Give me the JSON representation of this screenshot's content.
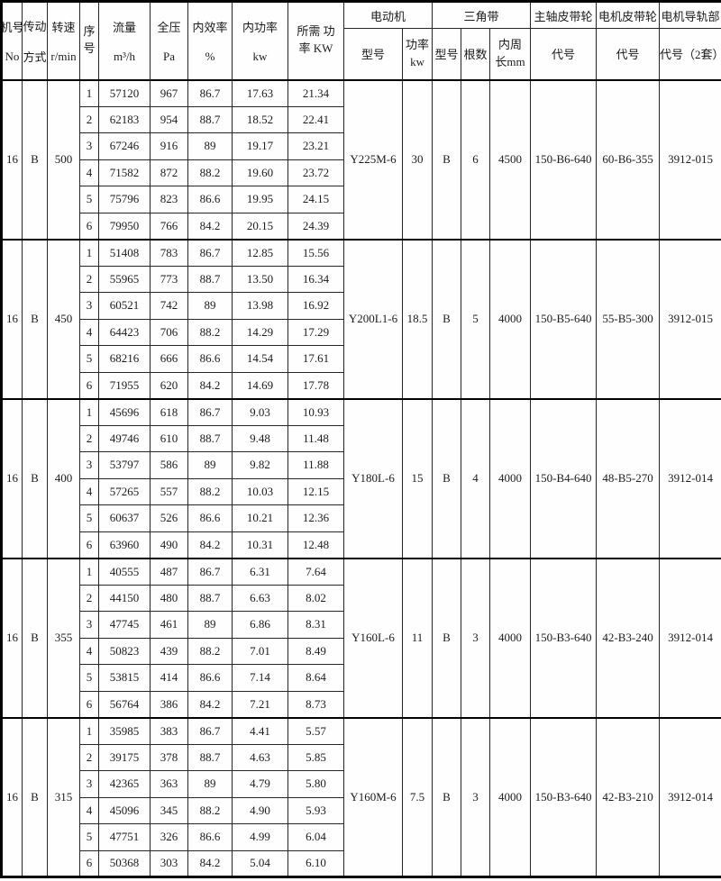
{
  "header": {
    "col_machine": {
      "top": "机号",
      "bottom": "No"
    },
    "col_drive": {
      "top": "传动",
      "bottom": "方式"
    },
    "col_speed": {
      "top": "转速",
      "bottom": "r/min"
    },
    "col_serial": {
      "top": "序",
      "bottom": "号"
    },
    "col_flow": {
      "top": "流量",
      "bottom": "m³/h"
    },
    "col_pressure": {
      "top": "全压",
      "bottom": "Pa"
    },
    "col_efficiency": {
      "top": "内效率",
      "bottom": "%"
    },
    "col_power": {
      "top": "内功率",
      "bottom": "kw"
    },
    "col_required": {
      "line1": "所需 功",
      "line2": "率 KW"
    },
    "motor_group": "电动机",
    "motor_model_label": "型号",
    "motor_power_label": {
      "line1": "功率",
      "line2": "kw"
    },
    "belt_group": "三角带",
    "belt_model_label": "型号",
    "belt_count_label": "根数",
    "belt_length_label": {
      "line1": "内周",
      "line2": "长mm"
    },
    "main_pulley_group": "主轴皮带轮",
    "main_pulley_code_label": "代号",
    "motor_pulley_group": "电机皮带轮",
    "motor_pulley_code_label": "代号",
    "rail_group": "电机导轨部",
    "rail_code_label": "代号（2套）"
  },
  "groups": [
    {
      "machine_no": "16",
      "drive": "B",
      "speed": "500",
      "bold_row": -1,
      "rows": [
        [
          "1",
          "57120",
          "967",
          "86.7",
          "17.63",
          "21.34"
        ],
        [
          "2",
          "62183",
          "954",
          "88.7",
          "18.52",
          "22.41"
        ],
        [
          "3",
          "67246",
          "916",
          "89",
          "19.17",
          "23.21"
        ],
        [
          "4",
          "71582",
          "872",
          "88.2",
          "19.60",
          "23.72"
        ],
        [
          "5",
          "75796",
          "823",
          "86.6",
          "19.95",
          "24.15"
        ],
        [
          "6",
          "79950",
          "766",
          "84.2",
          "20.15",
          "24.39"
        ]
      ],
      "motor_model": "Y225M-6",
      "motor_power": "30",
      "belt_model": "B",
      "belt_count": "6",
      "belt_length": "4500",
      "main_pulley": "150-B6-640",
      "motor_pulley": "60-B6-355",
      "rail": "3912-015"
    },
    {
      "machine_no": "16",
      "drive": "B",
      "speed": "450",
      "bold_row": -1,
      "rows": [
        [
          "1",
          "51408",
          "783",
          "86.7",
          "12.85",
          "15.56"
        ],
        [
          "2",
          "55965",
          "773",
          "88.7",
          "13.50",
          "16.34"
        ],
        [
          "3",
          "60521",
          "742",
          "89",
          "13.98",
          "16.92"
        ],
        [
          "4",
          "64423",
          "706",
          "88.2",
          "14.29",
          "17.29"
        ],
        [
          "5",
          "68216",
          "666",
          "86.6",
          "14.54",
          "17.61"
        ],
        [
          "6",
          "71955",
          "620",
          "84.2",
          "14.69",
          "17.78"
        ]
      ],
      "motor_model": "Y200L1-6",
      "motor_power": "18.5",
      "belt_model": "B",
      "belt_count": "5",
      "belt_length": "4000",
      "main_pulley": "150-B5-640",
      "motor_pulley": "55-B5-300",
      "rail": "3912-015"
    },
    {
      "machine_no": "16",
      "drive": "B",
      "speed": "400",
      "bold_row": 0,
      "rows": [
        [
          "1",
          "45696",
          "618",
          "86.7",
          "9.03",
          "10.93"
        ],
        [
          "2",
          "49746",
          "610",
          "88.7",
          "9.48",
          "11.48"
        ],
        [
          "3",
          "53797",
          "586",
          "89",
          "9.82",
          "11.88"
        ],
        [
          "4",
          "57265",
          "557",
          "88.2",
          "10.03",
          "12.15"
        ],
        [
          "5",
          "60637",
          "526",
          "86.6",
          "10.21",
          "12.36"
        ],
        [
          "6",
          "63960",
          "490",
          "84.2",
          "10.31",
          "12.48"
        ]
      ],
      "motor_model": "Y180L-6",
      "motor_power": "15",
      "belt_model": "B",
      "belt_count": "4",
      "belt_length": "4000",
      "main_pulley": "150-B4-640",
      "motor_pulley": "48-B5-270",
      "rail": "3912-014"
    },
    {
      "machine_no": "16",
      "drive": "B",
      "speed": "355",
      "bold_row": -1,
      "rows": [
        [
          "1",
          "40555",
          "487",
          "86.7",
          "6.31",
          "7.64"
        ],
        [
          "2",
          "44150",
          "480",
          "88.7",
          "6.63",
          "8.02"
        ],
        [
          "3",
          "47745",
          "461",
          "89",
          "6.86",
          "8.31"
        ],
        [
          "4",
          "50823",
          "439",
          "88.2",
          "7.01",
          "8.49"
        ],
        [
          "5",
          "53815",
          "414",
          "86.6",
          "7.14",
          "8.64"
        ],
        [
          "6",
          "56764",
          "386",
          "84.2",
          "7.21",
          "8.73"
        ]
      ],
      "motor_model": "Y160L-6",
      "motor_power": "11",
      "belt_model": "B",
      "belt_count": "3",
      "belt_length": "4000",
      "main_pulley": "150-B3-640",
      "motor_pulley": "42-B3-240",
      "rail": "3912-014"
    },
    {
      "machine_no": "16",
      "drive": "B",
      "speed": "315",
      "bold_row": -1,
      "rows": [
        [
          "1",
          "35985",
          "383",
          "86.7",
          "4.41",
          "5.57"
        ],
        [
          "2",
          "39175",
          "378",
          "88.7",
          "4.63",
          "5.85"
        ],
        [
          "3",
          "42365",
          "363",
          "89",
          "4.79",
          "5.80"
        ],
        [
          "4",
          "45096",
          "345",
          "88.2",
          "4.90",
          "5.93"
        ],
        [
          "5",
          "47751",
          "326",
          "86.6",
          "4.99",
          "6.04"
        ],
        [
          "6",
          "50368",
          "303",
          "84.2",
          "5.04",
          "6.10"
        ]
      ],
      "motor_model": "Y160M-6",
      "motor_power": "7.5",
      "belt_model": "B",
      "belt_count": "3",
      "belt_length": "4000",
      "main_pulley": "150-B3-640",
      "motor_pulley": "42-B3-210",
      "rail": "3912-014"
    }
  ]
}
